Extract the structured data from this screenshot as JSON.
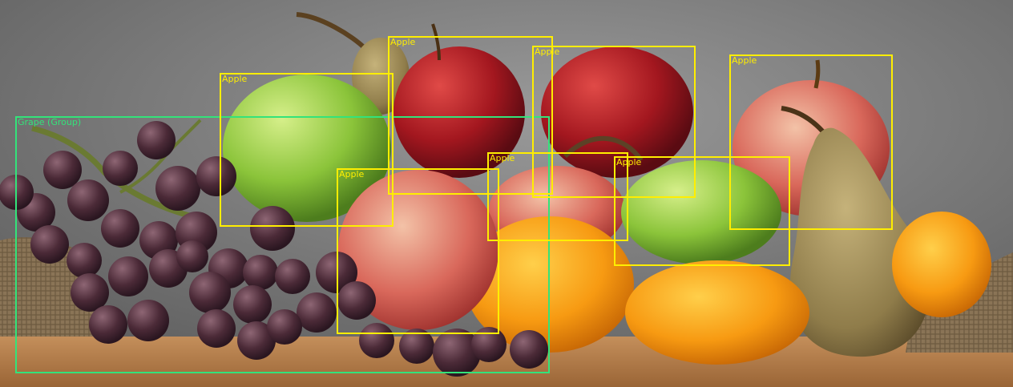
{
  "image": {
    "subject": "fruit still life",
    "colors": {
      "background": "#6f6f6f",
      "table": "#b77f4a",
      "apple_box": "#ffee00",
      "grape_box": "#33e37a"
    }
  },
  "detections": [
    {
      "label": "Grape (Group)",
      "class": "grape"
    },
    {
      "label": "Apple",
      "class": "apple"
    },
    {
      "label": "Apple",
      "class": "apple"
    },
    {
      "label": "Apple",
      "class": "apple"
    },
    {
      "label": "Apple",
      "class": "apple"
    },
    {
      "label": "Apple",
      "class": "apple"
    },
    {
      "label": "Apple",
      "class": "apple"
    },
    {
      "label": "Apple",
      "class": "apple"
    }
  ]
}
